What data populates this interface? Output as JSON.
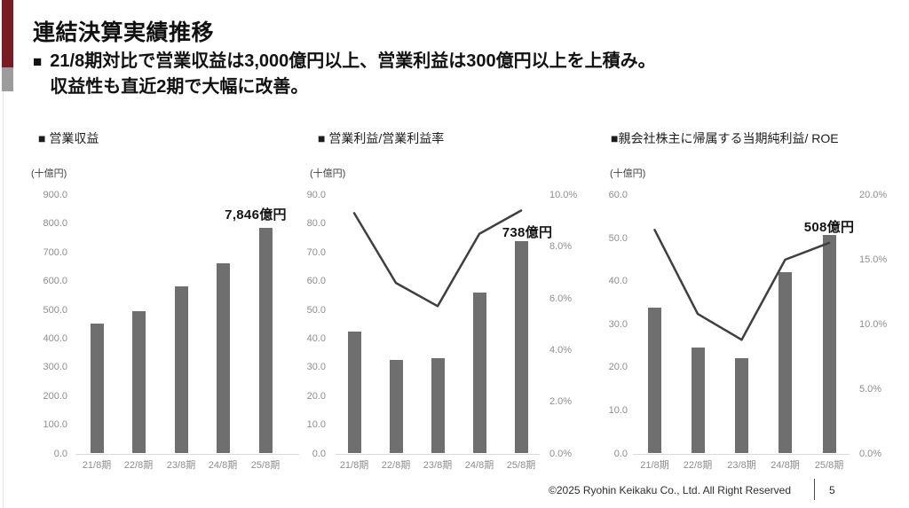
{
  "page": {
    "title": "連結決算実績推移",
    "bullet_marker": "■",
    "bullet_line1": "21/8期対比で営業収益は3,000億円以上、営業利益は300億円以上を上積み。",
    "bullet_line2": "収益性も直近2期で大幅に改善。",
    "footer": {
      "copyright": "©2025 Ryohin Keikaku Co., Ltd. All Right Reserved",
      "page_number": "5"
    }
  },
  "colors": {
    "accent_red": "#7B1B23",
    "accent_gray": "#9C9C9C",
    "bar": "#6F6F6F",
    "trend_line": "#3F3F3F",
    "axis_line": "#D9D9D9",
    "axis_text": "#8E8E8E",
    "heading_text": "#111111"
  },
  "chart_data": [
    {
      "type": "bar",
      "title": "■ 営業収益",
      "unit": "(十億円)",
      "categories": [
        "21/8期",
        "22/8期",
        "23/8期",
        "24/8期",
        "25/8期"
      ],
      "series": [
        {
          "name": "営業収益",
          "type": "bar",
          "axis": "left",
          "values": [
            453.6,
            496.1,
            581.4,
            661.6,
            784.6
          ]
        }
      ],
      "left_axis": {
        "min": 0,
        "max": 900,
        "step": 100,
        "suffix": ""
      },
      "right_axis": null,
      "annotation": "7,846億円",
      "grid": false,
      "legend": "none"
    },
    {
      "type": "bar+line",
      "title": "■ 営業利益/営業利益率",
      "unit": "(十億円)",
      "categories": [
        "21/8期",
        "22/8期",
        "23/8期",
        "24/8期",
        "25/8期"
      ],
      "series": [
        {
          "name": "営業利益",
          "type": "bar",
          "axis": "left",
          "values": [
            42.4,
            32.7,
            33.1,
            56.1,
            73.8
          ]
        },
        {
          "name": "営業利益率",
          "type": "line",
          "axis": "right",
          "values": [
            9.3,
            6.6,
            5.7,
            8.5,
            9.4
          ]
        }
      ],
      "left_axis": {
        "min": 0,
        "max": 90,
        "step": 10,
        "suffix": ""
      },
      "right_axis": {
        "min": 0,
        "max": 10,
        "step": 2,
        "suffix": "%"
      },
      "annotation": "738億円",
      "grid": false,
      "legend": "none"
    },
    {
      "type": "bar+line",
      "title": "■親会社株主に帰属する当期純利益/ ROE",
      "unit": "(十億円)",
      "categories": [
        "21/8期",
        "22/8期",
        "23/8期",
        "24/8期",
        "25/8期"
      ],
      "series": [
        {
          "name": "親会社株主に帰属する当期純利益",
          "type": "bar",
          "axis": "left",
          "values": [
            33.9,
            24.5,
            22.1,
            42.0,
            50.8
          ]
        },
        {
          "name": "ROE",
          "type": "line",
          "axis": "right",
          "values": [
            17.3,
            10.8,
            8.8,
            15.0,
            16.3
          ]
        }
      ],
      "left_axis": {
        "min": 0,
        "max": 60,
        "step": 10,
        "suffix": ""
      },
      "right_axis": {
        "min": 0,
        "max": 20,
        "step": 5,
        "suffix": "%"
      },
      "annotation": "508億円",
      "grid": false,
      "legend": "none"
    }
  ]
}
